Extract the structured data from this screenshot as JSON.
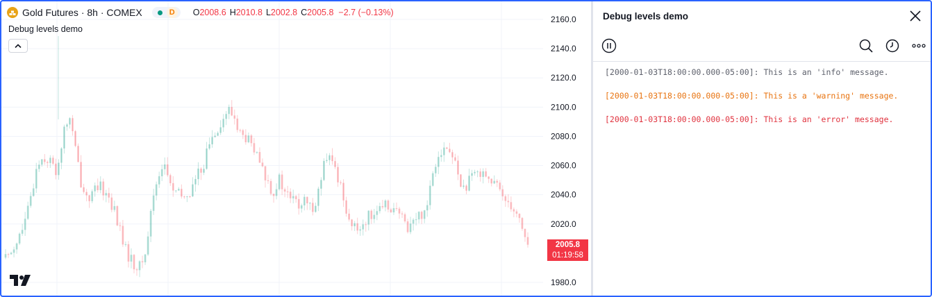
{
  "legend": {
    "symbol_title": "Gold Futures · 8h · COMEX",
    "market_status_badge": "D",
    "ohlc": {
      "o_key": "O",
      "o_val": "2008.6",
      "h_key": "H",
      "h_val": "2010.8",
      "l_key": "L",
      "l_val": "2002.8",
      "c_key": "C",
      "c_val": "2005.8",
      "change": "−2.7 (−0.13%)"
    },
    "study_name": "Debug levels demo"
  },
  "price_label": {
    "price": "2005.8",
    "countdown": "01:19:58"
  },
  "colors": {
    "up": "#089981",
    "down": "#f23645",
    "accent": "#2962ff",
    "warning": "#e8730f",
    "error": "#e0313d",
    "info": "#5d606b"
  },
  "icons": {
    "symbol": "gold-bars-icon",
    "collapse": "chevron-up-icon",
    "logo": "tradingview-logo-icon",
    "close": "close-icon",
    "pause": "pause-icon",
    "search": "search-icon",
    "history": "clock-icon",
    "more": "ellipsis-icon"
  },
  "debug_panel": {
    "title": "Debug levels demo",
    "logs": [
      {
        "level": "info",
        "text": "[2000-01-03T18:00:00.000-05:00]: This is an 'info' message."
      },
      {
        "level": "warning",
        "text": "[2000-01-03T18:00:00.000-05:00]: This is a 'warning' message."
      },
      {
        "level": "error",
        "text": "[2000-01-03T18:00:00.000-05:00]: This is an 'error' message."
      }
    ]
  },
  "chart_data": {
    "type": "candlestick",
    "y_ticks": [
      "2160.0",
      "2140.0",
      "2120.0",
      "2100.0",
      "2080.0",
      "2060.0",
      "2040.0",
      "2020.0",
      "1980.0"
    ],
    "y_tick_values": [
      2160,
      2140,
      2120,
      2100,
      2080,
      2060,
      2040,
      2020,
      1980
    ],
    "ylim": [
      1977,
      2168
    ],
    "grid": true,
    "last_price": 2005.8,
    "close_path": [
      1997,
      2003,
      2010,
      2020,
      2038,
      2062,
      2066,
      2063,
      2055,
      2080,
      2095,
      2070,
      2045,
      2038,
      2042,
      2045,
      2040,
      2030,
      2015,
      2000,
      1993,
      1990,
      2000,
      2035,
      2055,
      2060,
      2045,
      2040,
      2038,
      2042,
      2052,
      2060,
      2075,
      2085,
      2090,
      2098,
      2092,
      2080,
      2078,
      2070,
      2060,
      2050,
      2042,
      2050,
      2040,
      2038,
      2032,
      2035,
      2030,
      2040,
      2060,
      2065,
      2055,
      2040,
      2022,
      2015,
      2020,
      2025,
      2030,
      2028,
      2034,
      2030,
      2025,
      2018,
      2022,
      2026,
      2030,
      2055,
      2070,
      2072,
      2068,
      2055,
      2043,
      2050,
      2055,
      2058,
      2050,
      2046,
      2040,
      2036,
      2030,
      2020,
      2005
    ]
  }
}
